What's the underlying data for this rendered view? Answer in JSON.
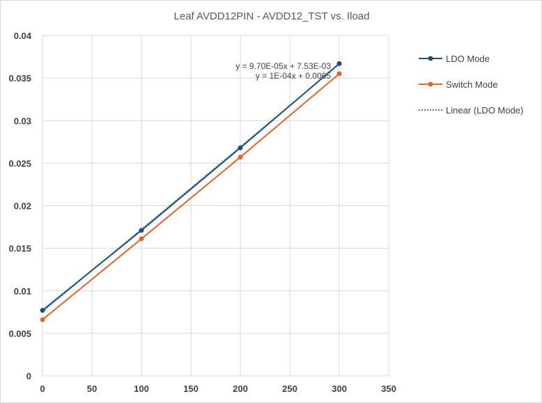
{
  "chart_data": {
    "type": "line",
    "title": "Leaf AVDD12PIN - AVDD12_TST vs. Iload",
    "xlabel": "",
    "ylabel": "",
    "xlim": [
      0,
      350
    ],
    "ylim": [
      0,
      0.04
    ],
    "x_ticks": [
      0,
      50,
      100,
      150,
      200,
      250,
      300,
      350
    ],
    "x_tick_labels": [
      "0",
      "50",
      "100",
      "150",
      "200",
      "250",
      "300",
      "350"
    ],
    "y_ticks": [
      0,
      0.005,
      0.01,
      0.015,
      0.02,
      0.025,
      0.03,
      0.035,
      0.04
    ],
    "y_tick_labels": [
      "0",
      "0.005",
      "0.01",
      "0.015",
      "0.02",
      "0.025",
      "0.03",
      "0.035",
      "0.04"
    ],
    "grid": true,
    "legend_position": "right",
    "series": [
      {
        "name": "LDO Mode",
        "color": "#1f4e79",
        "marker": "circle",
        "style": "solid",
        "x": [
          0,
          100,
          200,
          300
        ],
        "y": [
          0.0077,
          0.0171,
          0.0268,
          0.0367
        ]
      },
      {
        "name": "Switch Mode",
        "color": "#e8622a",
        "marker": "circle",
        "style": "solid",
        "x": [
          0,
          100,
          200,
          300
        ],
        "y": [
          0.0066,
          0.0161,
          0.0257,
          0.0355
        ]
      }
    ],
    "trendline": {
      "name": "Linear (LDO Mode)",
      "color": "#4472c4",
      "style": "dotted",
      "slope": 9.7e-05,
      "intercept": 0.00753,
      "x_range": [
        0,
        300
      ]
    },
    "annotations": [
      {
        "text": "y = 9.70E-05x + 7.53E-03"
      },
      {
        "text": "y = 1E-04x + 0.0065"
      }
    ]
  }
}
